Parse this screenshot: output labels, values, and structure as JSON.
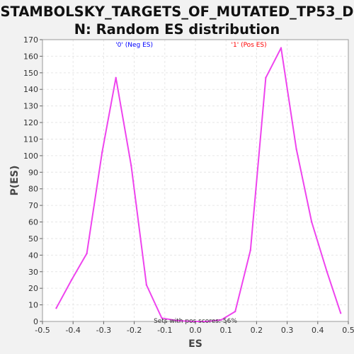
{
  "chart_data": {
    "type": "line",
    "title": "STAMBOLSKY_TARGETS_OF_MUTATED_TP53_DN: Random ES distribution",
    "title_lines": [
      "STAMBOLSKY_TARGETS_OF_MUTATED_TP53_D",
      "N: Random ES distribution"
    ],
    "xlabel": "ES",
    "ylabel": "P(ES)",
    "xlim": [
      -0.5,
      0.5
    ],
    "ylim": [
      0,
      170
    ],
    "x_ticks": [
      -0.5,
      -0.4,
      -0.3,
      -0.2,
      -0.1,
      0.0,
      0.1,
      0.2,
      0.3,
      0.4,
      0.5
    ],
    "x_tick_labels": [
      "-0.5",
      "-0.4",
      "-0.3",
      "-0.2",
      "-0.1",
      "0.0",
      "0.1",
      "0.2",
      "0.3",
      "0.4",
      "0.5"
    ],
    "y_ticks": [
      0,
      10,
      20,
      30,
      40,
      50,
      60,
      70,
      80,
      90,
      100,
      110,
      120,
      130,
      140,
      150,
      160,
      170
    ],
    "grid": true,
    "series": [
      {
        "color": "#ee44ee",
        "x": [
          -0.455,
          -0.405,
          -0.355,
          -0.305,
          -0.26,
          -0.21,
          -0.16,
          -0.11,
          -0.06,
          -0.01,
          0.04,
          0.085,
          0.13,
          0.18,
          0.23,
          0.28,
          0.33,
          0.38,
          0.43,
          0.475
        ],
        "y": [
          8,
          25,
          41,
          102,
          147,
          94,
          22,
          2,
          0.5,
          0,
          0,
          1,
          6,
          43,
          147,
          165,
          104,
          60,
          30,
          5
        ]
      }
    ],
    "annotations": [
      {
        "text": "'0' (Neg ES)",
        "x": -0.2,
        "y": 167,
        "color": "#0000ff"
      },
      {
        "text": "'1' (Pos ES)",
        "x": 0.175,
        "y": 167,
        "color": "#ff0000"
      },
      {
        "text": "Sets with pos scores: 56%",
        "x": 0.0,
        "y": 0.5,
        "color": "#333333"
      }
    ],
    "colors": {
      "plot_bg": "#ffffff",
      "page_bg": "#f2f2f2",
      "grid": "#e6e6e6",
      "axis": "#999999"
    }
  }
}
